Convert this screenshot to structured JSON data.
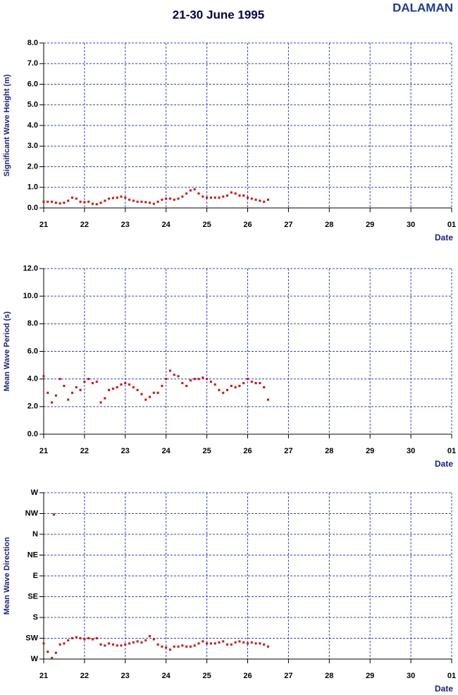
{
  "title": "21-30 June 1995",
  "station": "DALAMAN",
  "chart_data": [
    {
      "type": "scatter",
      "ylabel": "Significant Wave Height (m)",
      "xlabel": "Date",
      "color": "#e00000",
      "grid": true,
      "xlim": [
        21,
        31
      ],
      "xticks": [
        21,
        22,
        23,
        24,
        25,
        26,
        27,
        28,
        29,
        30,
        {
          "value": 31,
          "label": "01"
        }
      ],
      "ylim": [
        0,
        8
      ],
      "yticks": [
        {
          "value": 0,
          "label": "0.0"
        },
        {
          "value": 1,
          "label": "1.0"
        },
        {
          "value": 2,
          "label": "2.0"
        },
        {
          "value": 3,
          "label": "3.0"
        },
        {
          "value": 4,
          "label": "4.0"
        },
        {
          "value": 5,
          "label": "5.0"
        },
        {
          "value": 6,
          "label": "6.0"
        },
        {
          "value": 7,
          "label": "7.0"
        },
        {
          "value": 8,
          "label": "8.0"
        }
      ],
      "x": [
        21.0,
        21.1,
        21.2,
        21.3,
        21.4,
        21.5,
        21.6,
        21.7,
        21.8,
        21.9,
        22.0,
        22.1,
        22.2,
        22.3,
        22.4,
        22.5,
        22.6,
        22.7,
        22.8,
        22.9,
        23.0,
        23.1,
        23.2,
        23.3,
        23.4,
        23.5,
        23.6,
        23.7,
        23.8,
        23.9,
        24.0,
        24.1,
        24.2,
        24.3,
        24.4,
        24.5,
        24.6,
        24.7,
        24.8,
        24.9,
        25.0,
        25.1,
        25.2,
        25.3,
        25.4,
        25.5,
        25.6,
        25.7,
        25.8,
        25.9,
        26.0,
        26.1,
        26.2,
        26.3,
        26.4,
        26.5
      ],
      "values": [
        0.3,
        0.3,
        0.3,
        0.25,
        0.22,
        0.25,
        0.35,
        0.5,
        0.45,
        0.3,
        0.28,
        0.3,
        0.2,
        0.18,
        0.25,
        0.35,
        0.45,
        0.48,
        0.5,
        0.55,
        0.5,
        0.4,
        0.35,
        0.3,
        0.3,
        0.28,
        0.25,
        0.2,
        0.3,
        0.4,
        0.45,
        0.45,
        0.4,
        0.45,
        0.55,
        0.7,
        0.85,
        0.9,
        0.7,
        0.55,
        0.5,
        0.5,
        0.5,
        0.5,
        0.55,
        0.6,
        0.75,
        0.7,
        0.6,
        0.6,
        0.5,
        0.45,
        0.4,
        0.35,
        0.3,
        0.4
      ]
    },
    {
      "type": "scatter",
      "ylabel": "Mean Wave Period (s)",
      "xlabel": "Date",
      "color": "#e00000",
      "grid": true,
      "xlim": [
        21,
        31
      ],
      "xticks": [
        21,
        22,
        23,
        24,
        25,
        26,
        27,
        28,
        29,
        30,
        {
          "value": 31,
          "label": "01"
        }
      ],
      "ylim": [
        0,
        12
      ],
      "yticks": [
        {
          "value": 0,
          "label": "0.0"
        },
        {
          "value": 2,
          "label": "2.0"
        },
        {
          "value": 4,
          "label": "4.0"
        },
        {
          "value": 6,
          "label": "6.0"
        },
        {
          "value": 8,
          "label": "8.0"
        },
        {
          "value": 10,
          "label": "10.0"
        },
        {
          "value": 12,
          "label": "12.0"
        }
      ],
      "x": [
        21.0,
        21.1,
        21.2,
        21.3,
        21.4,
        21.5,
        21.6,
        21.7,
        21.8,
        21.9,
        22.0,
        22.1,
        22.2,
        22.3,
        22.4,
        22.5,
        22.6,
        22.7,
        22.8,
        22.9,
        23.0,
        23.1,
        23.2,
        23.3,
        23.4,
        23.5,
        23.6,
        23.7,
        23.8,
        23.9,
        24.0,
        24.1,
        24.2,
        24.3,
        24.4,
        24.5,
        24.6,
        24.7,
        24.8,
        24.9,
        25.0,
        25.1,
        25.2,
        25.3,
        25.4,
        25.5,
        25.6,
        25.7,
        25.8,
        25.9,
        26.0,
        26.1,
        26.2,
        26.3,
        26.4,
        26.5
      ],
      "values": [
        4.2,
        3.0,
        2.3,
        2.8,
        4.0,
        3.5,
        2.5,
        3.0,
        3.4,
        3.2,
        3.8,
        4.0,
        3.7,
        3.8,
        2.3,
        2.6,
        3.2,
        3.3,
        3.4,
        3.6,
        3.7,
        3.6,
        3.4,
        3.2,
        2.9,
        2.5,
        2.7,
        3.0,
        3.0,
        3.5,
        4.0,
        4.6,
        4.3,
        4.2,
        3.7,
        3.5,
        3.9,
        4.0,
        4.0,
        4.1,
        4.0,
        3.8,
        3.6,
        3.2,
        3.0,
        3.2,
        3.5,
        3.4,
        3.5,
        3.7,
        4.0,
        3.8,
        3.7,
        3.7,
        3.4,
        2.5
      ]
    },
    {
      "type": "scatter",
      "ylabel": "Mean Wave Direction",
      "xlabel": "Date",
      "color": "#e00000",
      "grid": true,
      "xlim": [
        21,
        31
      ],
      "xticks": [
        21,
        22,
        23,
        24,
        25,
        26,
        27,
        28,
        29,
        30,
        {
          "value": 31,
          "label": "01"
        }
      ],
      "ylim": [
        0,
        8
      ],
      "yticks": [
        {
          "value": 0,
          "label": "W"
        },
        {
          "value": 1,
          "label": "SW"
        },
        {
          "value": 2,
          "label": "S"
        },
        {
          "value": 3,
          "label": "SE"
        },
        {
          "value": 4,
          "label": "E"
        },
        {
          "value": 5,
          "label": "NE"
        },
        {
          "value": 6,
          "label": "N"
        },
        {
          "value": 7,
          "label": "NW"
        },
        {
          "value": 8,
          "label": "W"
        }
      ],
      "x": [
        21.0,
        21.1,
        21.2,
        21.25,
        21.3,
        21.4,
        21.5,
        21.6,
        21.7,
        21.8,
        21.9,
        22.0,
        22.1,
        22.2,
        22.3,
        22.4,
        22.5,
        22.6,
        22.7,
        22.8,
        22.9,
        23.0,
        23.1,
        23.2,
        23.3,
        23.4,
        23.5,
        23.6,
        23.7,
        23.8,
        23.9,
        24.0,
        24.1,
        24.2,
        24.3,
        24.4,
        24.5,
        24.6,
        24.7,
        24.8,
        24.9,
        25.0,
        25.1,
        25.2,
        25.3,
        25.4,
        25.5,
        25.6,
        25.7,
        25.8,
        25.9,
        26.0,
        26.1,
        26.2,
        26.3,
        26.4,
        26.5
      ],
      "values": [
        0.75,
        0.35,
        0.05,
        6.95,
        0.3,
        0.7,
        0.75,
        0.9,
        1.0,
        1.05,
        1.0,
        0.95,
        1.0,
        0.95,
        1.0,
        0.7,
        0.65,
        0.75,
        0.7,
        0.65,
        0.65,
        0.7,
        0.75,
        0.8,
        0.85,
        0.8,
        0.9,
        1.1,
        0.95,
        0.7,
        0.6,
        0.55,
        0.45,
        0.6,
        0.6,
        0.65,
        0.6,
        0.6,
        0.65,
        0.75,
        0.85,
        0.75,
        0.75,
        0.75,
        0.8,
        0.85,
        0.7,
        0.7,
        0.8,
        0.85,
        0.8,
        0.75,
        0.8,
        0.75,
        0.75,
        0.7,
        0.6
      ]
    }
  ]
}
